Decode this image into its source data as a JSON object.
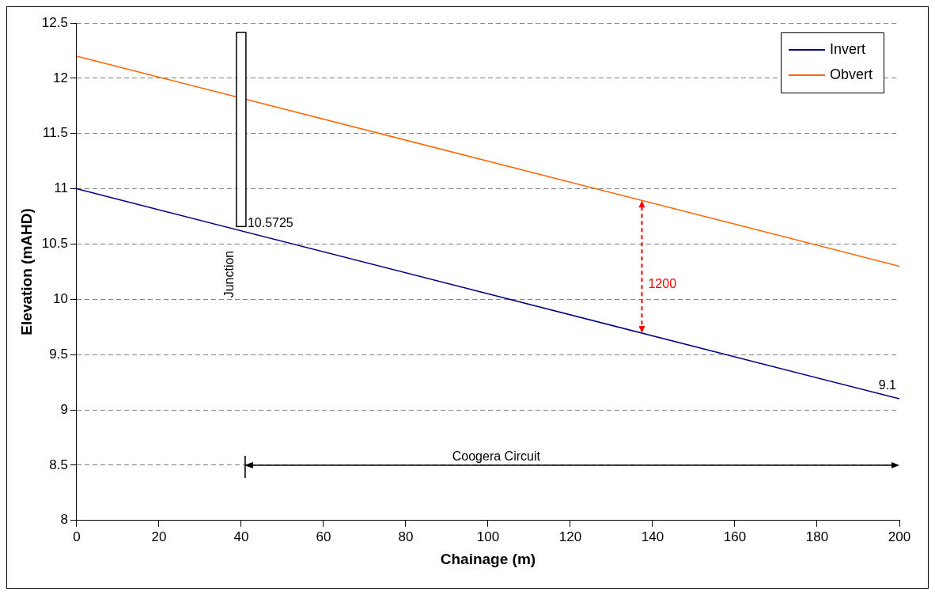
{
  "chart_data": {
    "type": "line",
    "xlabel": "Chainage (m)",
    "ylabel": "Elevation (mAHD)",
    "x": [
      0,
      200
    ],
    "series": [
      {
        "name": "Invert",
        "color": "#000080",
        "values": [
          11,
          9.1
        ]
      },
      {
        "name": "Obvert",
        "color": "#ff6600",
        "values": [
          12.2,
          10.3
        ]
      }
    ],
    "xlim": [
      0,
      200
    ],
    "xticks": [
      0,
      20,
      40,
      60,
      80,
      100,
      120,
      140,
      160,
      180,
      200
    ],
    "ylim": [
      8,
      12.5
    ],
    "yticks": [
      8,
      8.5,
      9,
      9.5,
      10,
      10.5,
      11,
      11.5,
      12,
      12.5
    ],
    "grid": "y",
    "legend": "top right",
    "marker": "none",
    "line_style": "solid",
    "annotations": [
      {
        "text": "10.5725",
        "x": 45,
        "y": 10.5725
      },
      "Junction",
      "1200",
      "Coogera Circuit",
      {
        "text": "9.1",
        "x": 200,
        "y": 9.1
      }
    ]
  }
}
